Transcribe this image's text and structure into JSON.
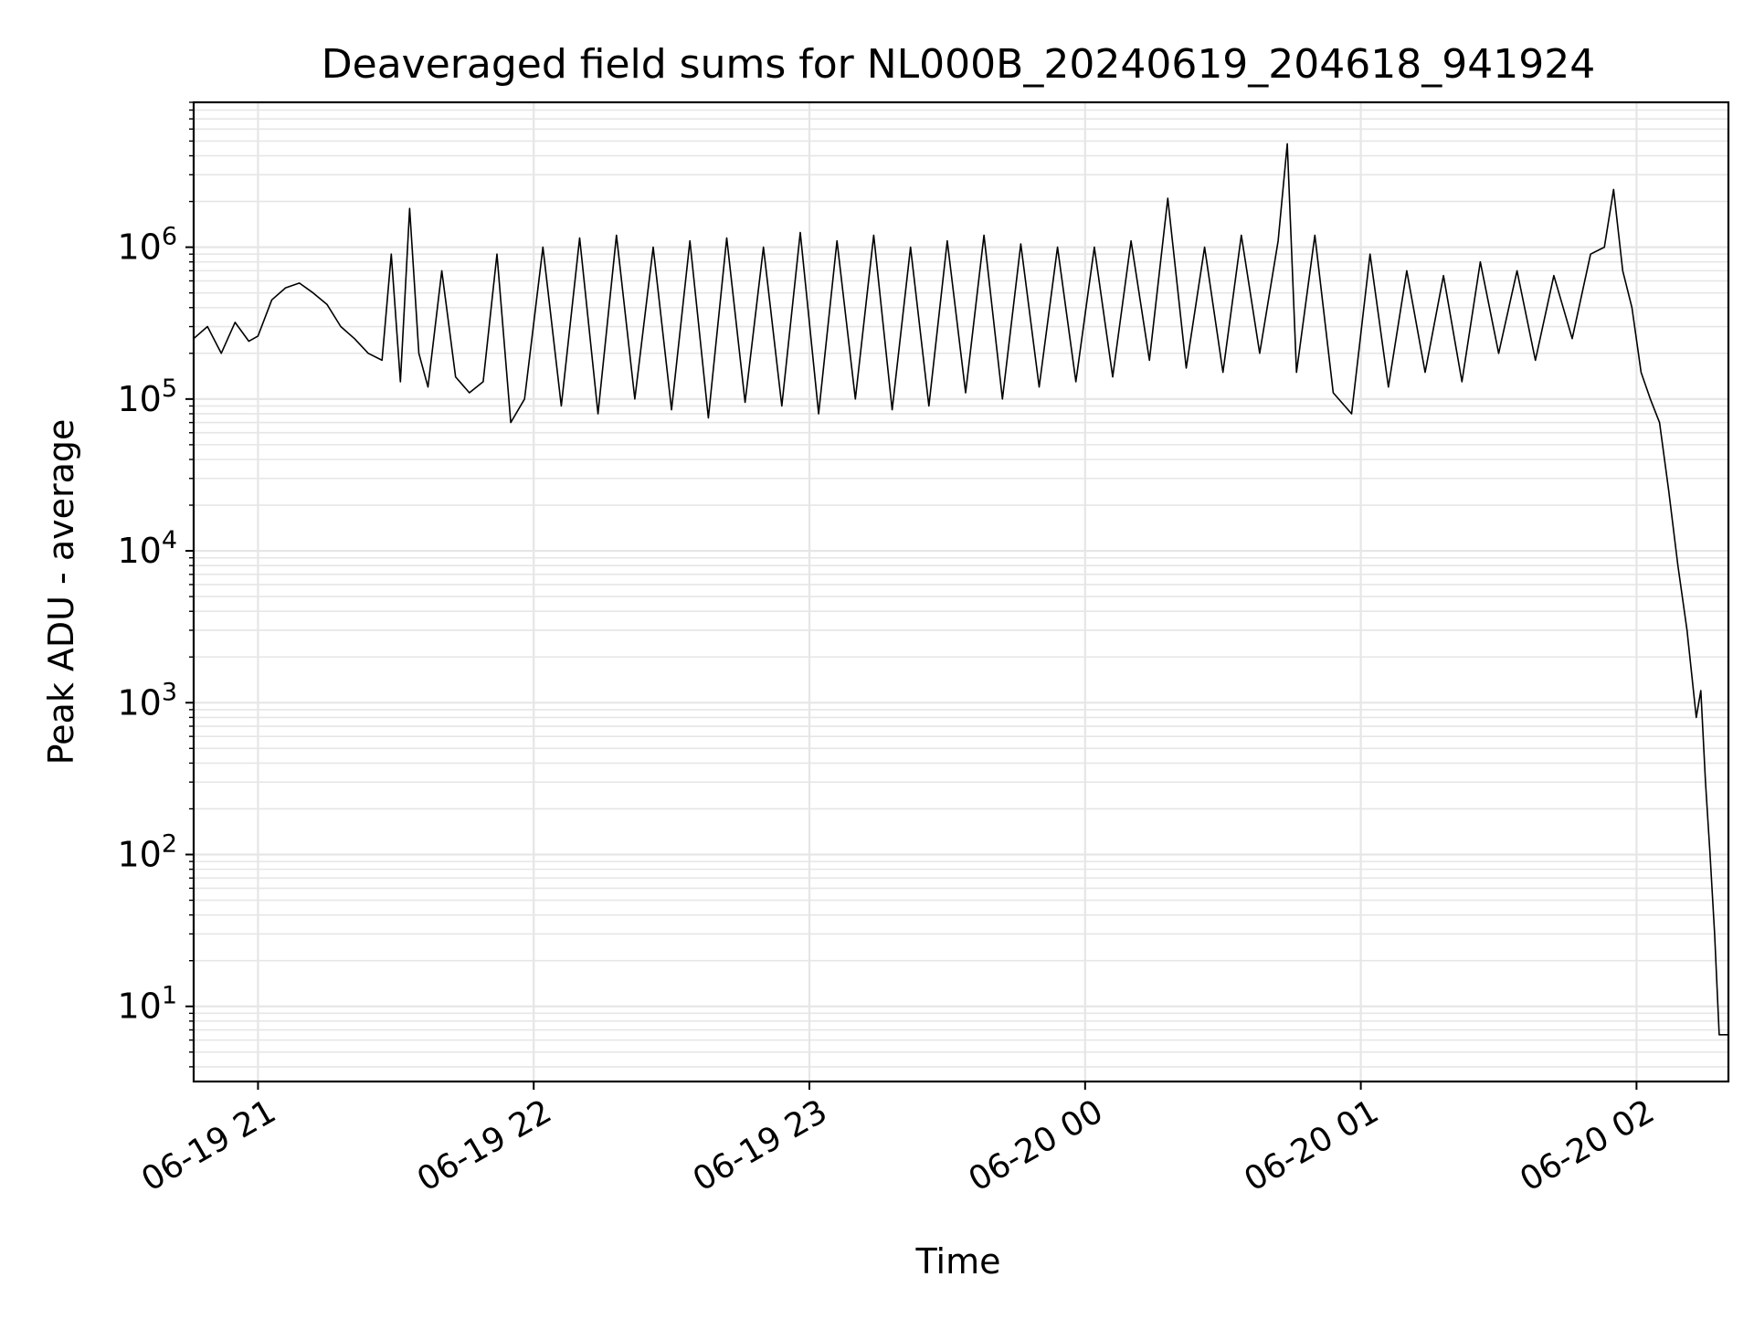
{
  "chart_data": {
    "type": "line",
    "title": "Deaveraged field sums for NL000B_20240619_204618_941924",
    "xlabel": "Time",
    "ylabel": "Peak ADU - average",
    "yscale": "log",
    "xlim": [
      "2024-06-19 20:46",
      "2024-06-20 02:20"
    ],
    "ylim": [
      3.2,
      9000000
    ],
    "grid": true,
    "grid_minor": true,
    "x_ticks": [
      {
        "value": "2024-06-19 21:00",
        "label": "06-19 21"
      },
      {
        "value": "2024-06-19 22:00",
        "label": "06-19 22"
      },
      {
        "value": "2024-06-19 23:00",
        "label": "06-19 23"
      },
      {
        "value": "2024-06-20 00:00",
        "label": "06-20 00"
      },
      {
        "value": "2024-06-20 01:00",
        "label": "06-20 01"
      },
      {
        "value": "2024-06-20 02:00",
        "label": "06-20 02"
      }
    ],
    "y_ticks": [
      {
        "value": 10,
        "base": "10",
        "exp": "1"
      },
      {
        "value": 100,
        "base": "10",
        "exp": "2"
      },
      {
        "value": 1000,
        "base": "10",
        "exp": "3"
      },
      {
        "value": 10000,
        "base": "10",
        "exp": "4"
      },
      {
        "value": 100000,
        "base": "10",
        "exp": "5"
      },
      {
        "value": 1000000,
        "base": "10",
        "exp": "6"
      }
    ],
    "colors": {
      "line": "#000000",
      "grid": "#e6e6e6",
      "axes": "#000000"
    },
    "series": [
      {
        "x": [
          "2024-06-19 20:46",
          "2024-06-19 20:49",
          "2024-06-19 20:52",
          "2024-06-19 20:55",
          "2024-06-19 20:58",
          "2024-06-19 21:00",
          "2024-06-19 21:03",
          "2024-06-19 21:06",
          "2024-06-19 21:09",
          "2024-06-19 21:12",
          "2024-06-19 21:15",
          "2024-06-19 21:18",
          "2024-06-19 21:21",
          "2024-06-19 21:24",
          "2024-06-19 21:27",
          "2024-06-19 21:29",
          "2024-06-19 21:31",
          "2024-06-19 21:33",
          "2024-06-19 21:35",
          "2024-06-19 21:37",
          "2024-06-19 21:40",
          "2024-06-19 21:43",
          "2024-06-19 21:46",
          "2024-06-19 21:49",
          "2024-06-19 21:52",
          "2024-06-19 21:55",
          "2024-06-19 21:58",
          "2024-06-19 22:02",
          "2024-06-19 22:06",
          "2024-06-19 22:10",
          "2024-06-19 22:14",
          "2024-06-19 22:18",
          "2024-06-19 22:22",
          "2024-06-19 22:26",
          "2024-06-19 22:30",
          "2024-06-19 22:34",
          "2024-06-19 22:38",
          "2024-06-19 22:42",
          "2024-06-19 22:46",
          "2024-06-19 22:50",
          "2024-06-19 22:54",
          "2024-06-19 22:58",
          "2024-06-19 23:02",
          "2024-06-19 23:06",
          "2024-06-19 23:10",
          "2024-06-19 23:14",
          "2024-06-19 23:18",
          "2024-06-19 23:22",
          "2024-06-19 23:26",
          "2024-06-19 23:30",
          "2024-06-19 23:34",
          "2024-06-19 23:38",
          "2024-06-19 23:42",
          "2024-06-19 23:46",
          "2024-06-19 23:50",
          "2024-06-19 23:54",
          "2024-06-19 23:58",
          "2024-06-20 00:02",
          "2024-06-20 00:06",
          "2024-06-20 00:10",
          "2024-06-20 00:14",
          "2024-06-20 00:18",
          "2024-06-20 00:22",
          "2024-06-20 00:26",
          "2024-06-20 00:30",
          "2024-06-20 00:34",
          "2024-06-20 00:38",
          "2024-06-20 00:42",
          "2024-06-20 00:44",
          "2024-06-20 00:46",
          "2024-06-20 00:50",
          "2024-06-20 00:54",
          "2024-06-20 00:58",
          "2024-06-20 01:02",
          "2024-06-20 01:06",
          "2024-06-20 01:10",
          "2024-06-20 01:14",
          "2024-06-20 01:18",
          "2024-06-20 01:22",
          "2024-06-20 01:26",
          "2024-06-20 01:30",
          "2024-06-20 01:34",
          "2024-06-20 01:38",
          "2024-06-20 01:42",
          "2024-06-20 01:46",
          "2024-06-20 01:50",
          "2024-06-20 01:53",
          "2024-06-20 01:55",
          "2024-06-20 01:57",
          "2024-06-20 01:59",
          "2024-06-20 02:01",
          "2024-06-20 02:03",
          "2024-06-20 02:05",
          "2024-06-20 02:07",
          "2024-06-20 02:09",
          "2024-06-20 02:11",
          "2024-06-20 02:13",
          "2024-06-20 02:14",
          "2024-06-20 02:15",
          "2024-06-20 02:16",
          "2024-06-20 02:17",
          "2024-06-20 02:18",
          "2024-06-20 02:19",
          "2024-06-20 02:20"
        ],
        "y": [
          250000,
          300000,
          200000,
          320000,
          240000,
          260000,
          450000,
          540000,
          580000,
          500000,
          420000,
          300000,
          250000,
          200000,
          180000,
          900000,
          130000,
          1800000,
          200000,
          120000,
          700000,
          140000,
          110000,
          130000,
          900000,
          70000,
          100000,
          1000000,
          90000,
          1150000,
          80000,
          1200000,
          100000,
          1000000,
          85000,
          1100000,
          75000,
          1150000,
          95000,
          1000000,
          90000,
          1250000,
          80000,
          1100000,
          100000,
          1200000,
          85000,
          1000000,
          90000,
          1100000,
          110000,
          1200000,
          100000,
          1050000,
          120000,
          1000000,
          130000,
          1000000,
          140000,
          1100000,
          180000,
          2100000,
          160000,
          1000000,
          150000,
          1200000,
          200000,
          1100000,
          4800000,
          150000,
          1200000,
          110000,
          80000,
          900000,
          120000,
          700000,
          150000,
          650000,
          130000,
          800000,
          200000,
          700000,
          180000,
          650000,
          250000,
          900000,
          1000000,
          2400000,
          700000,
          400000,
          150000,
          100000,
          70000,
          25000,
          8000,
          3000,
          800,
          1200,
          300,
          100,
          30,
          6.5,
          6.5,
          6.5
        ]
      }
    ]
  }
}
